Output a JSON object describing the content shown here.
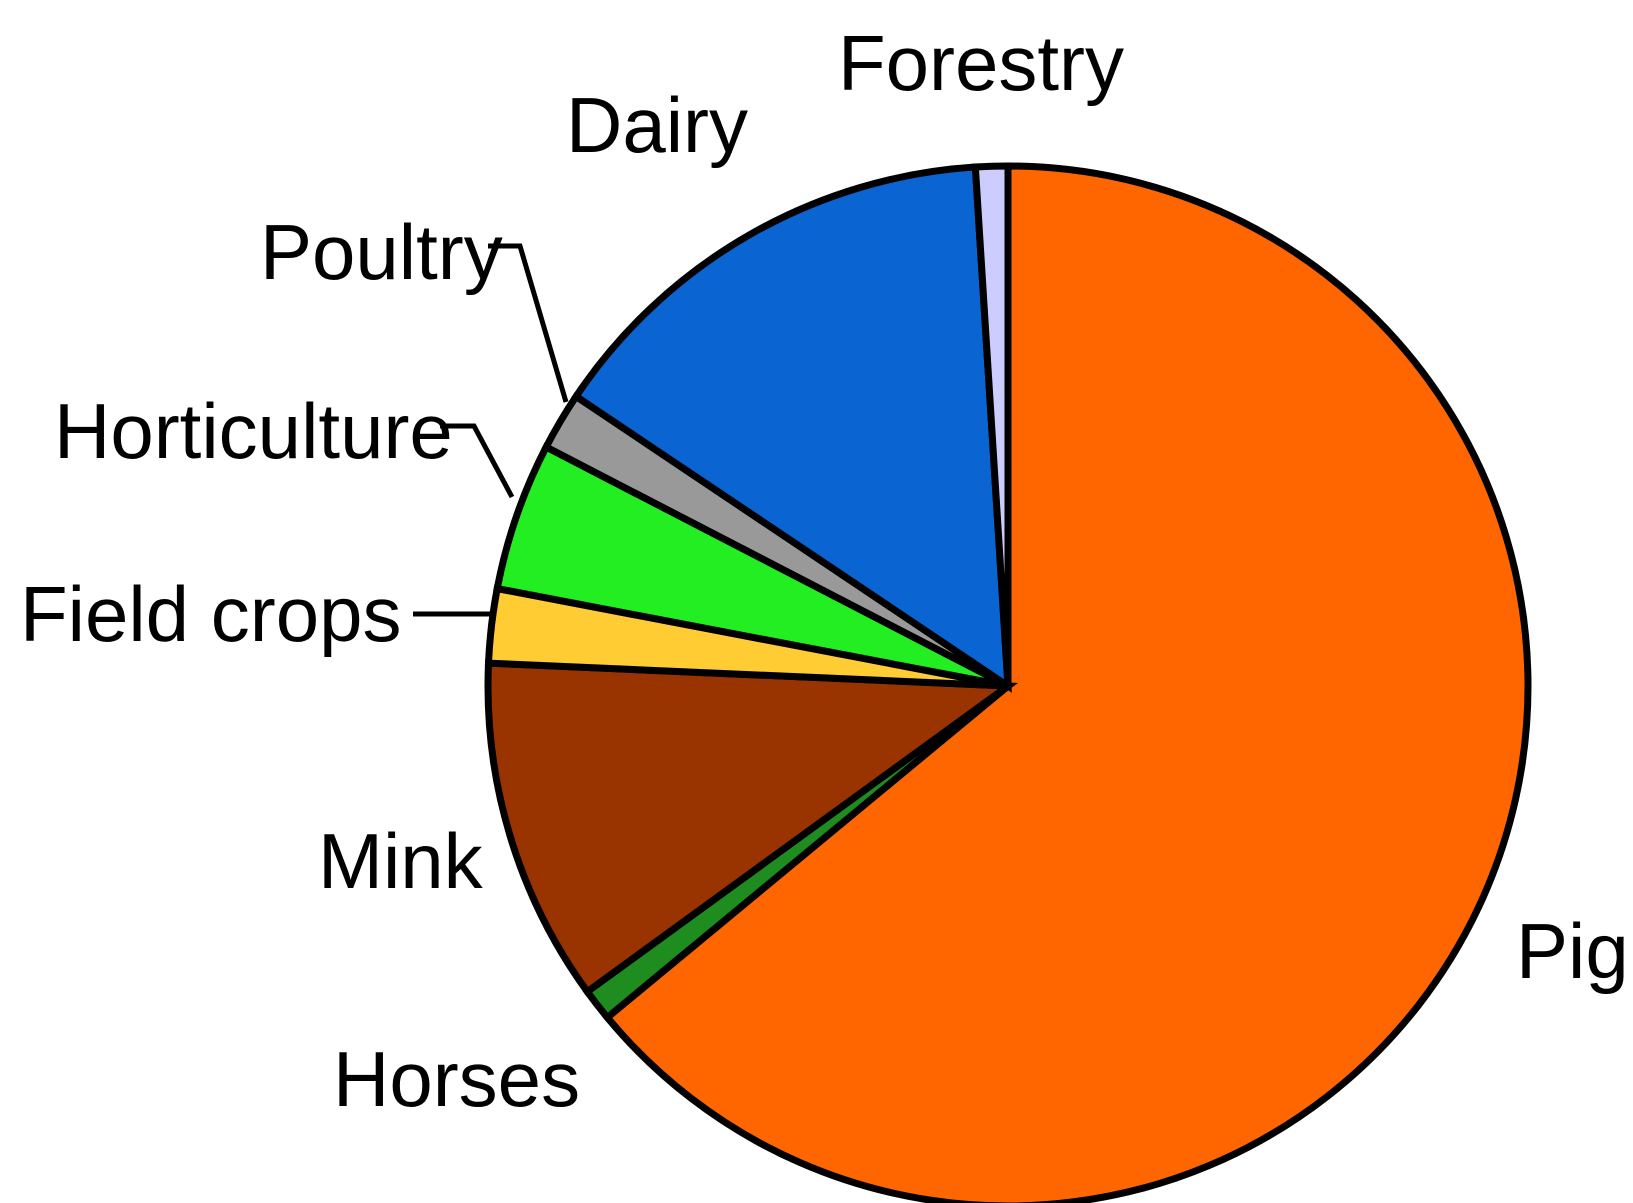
{
  "chart_data": {
    "type": "pie",
    "start_angle_deg": 0,
    "direction": "clockwise",
    "unit": "percent",
    "slices": [
      {
        "label": "Pig",
        "value": 64.0,
        "color": "#ff6600"
      },
      {
        "label": "Horses",
        "value": 1.0,
        "color": "#1e8c1e"
      },
      {
        "label": "Mink",
        "value": 10.7,
        "color": "#993300"
      },
      {
        "label": "Field crops",
        "value": 2.3,
        "color": "#ffcc33"
      },
      {
        "label": "Horticulture",
        "value": 4.6,
        "color": "#22ee22"
      },
      {
        "label": "Poultry",
        "value": 1.8,
        "color": "#999999"
      },
      {
        "label": "Dairy",
        "value": 14.6,
        "color": "#0a64d2"
      },
      {
        "label": "Forestry",
        "value": 1.0,
        "color": "#ccccff"
      }
    ]
  }
}
